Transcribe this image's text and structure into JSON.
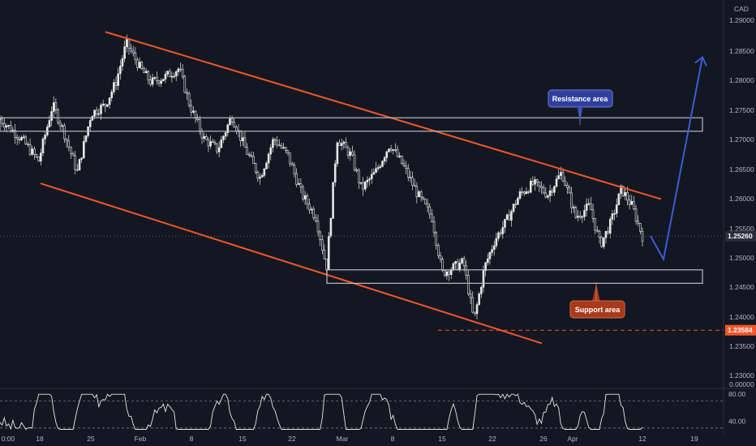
{
  "currency": "CAD",
  "colors": {
    "background": "#131722",
    "candle": "#e6e6e6",
    "trendline": "#f2562a",
    "zone_border": "#b8bcc6",
    "resistance_tag": "#2f3f9e",
    "support_tag": "#a8391a",
    "forecast_arrow": "#3d5bd6",
    "price_tag": "#f2562a",
    "last_price_tag": "#2a2e39",
    "oscillator_line": "#e6e6e6"
  },
  "annotations": {
    "resistance_label": "Resistance area",
    "support_label": "Support area"
  },
  "chart_data": {
    "type": "candlestick",
    "y_axis_labels": [
      "1.29000",
      "1.28500",
      "1.28000",
      "1.27500",
      "1.27000",
      "1.26500",
      "1.26000",
      "1.25500",
      "1.25000",
      "1.24500",
      "1.24000",
      "1.23500",
      "1.23000",
      "0.00000"
    ],
    "ylim": [
      1.2285,
      1.2918
    ],
    "x_axis_labels": [
      "0:00",
      "18",
      "25",
      "Feb",
      "8",
      "15",
      "22",
      "Mar",
      "8",
      "15",
      "22",
      "26",
      "Apr",
      "12",
      "19"
    ],
    "last_price": "1.25260",
    "marked_low": "1.23584",
    "resistance_zone": [
      1.2713,
      1.2737
    ],
    "support_zone": [
      1.2442,
      1.2466
    ],
    "channel_upper": [
      [
        0.0,
        1.289
      ],
      [
        1.0,
        1.2592
      ]
    ],
    "channel_lower": [
      [
        0.0,
        1.262
      ],
      [
        1.0,
        1.2335
      ]
    ],
    "close_path": [
      [
        0.0,
        1.2735
      ],
      [
        0.03,
        1.27
      ],
      [
        0.055,
        1.266
      ],
      [
        0.075,
        1.276
      ],
      [
        0.09,
        1.2715
      ],
      [
        0.11,
        1.264
      ],
      [
        0.13,
        1.2745
      ],
      [
        0.15,
        1.276
      ],
      [
        0.165,
        1.28
      ],
      [
        0.18,
        1.287
      ],
      [
        0.2,
        1.2825
      ],
      [
        0.215,
        1.28
      ],
      [
        0.235,
        1.281
      ],
      [
        0.255,
        1.2825
      ],
      [
        0.27,
        1.276
      ],
      [
        0.29,
        1.27
      ],
      [
        0.31,
        1.268
      ],
      [
        0.33,
        1.274
      ],
      [
        0.35,
        1.268
      ],
      [
        0.37,
        1.263
      ],
      [
        0.39,
        1.27
      ],
      [
        0.41,
        1.267
      ],
      [
        0.43,
        1.26
      ],
      [
        0.45,
        1.256
      ],
      [
        0.465,
        1.247
      ],
      [
        0.48,
        1.27
      ],
      [
        0.5,
        1.267
      ],
      [
        0.515,
        1.261
      ],
      [
        0.535,
        1.264
      ],
      [
        0.555,
        1.269
      ],
      [
        0.575,
        1.265
      ],
      [
        0.595,
        1.26
      ],
      [
        0.615,
        1.256
      ],
      [
        0.63,
        1.246
      ],
      [
        0.645,
        1.247
      ],
      [
        0.66,
        1.248
      ],
      [
        0.675,
        1.2375
      ],
      [
        0.69,
        1.247
      ],
      [
        0.705,
        1.252
      ],
      [
        0.72,
        1.255
      ],
      [
        0.74,
        1.26
      ],
      [
        0.76,
        1.262
      ],
      [
        0.78,
        1.26
      ],
      [
        0.8,
        1.264
      ],
      [
        0.82,
        1.256
      ],
      [
        0.84,
        1.258
      ],
      [
        0.855,
        1.251
      ],
      [
        0.87,
        1.255
      ],
      [
        0.885,
        1.261
      ],
      [
        0.9,
        1.258
      ],
      [
        0.915,
        1.2526
      ]
    ],
    "forecast_path": [
      [
        1.2526,
        0
      ],
      [
        1.2485,
        1
      ],
      [
        1.2845,
        2
      ]
    ],
    "oscillator": {
      "labels": [
        "80.00",
        "40.00"
      ],
      "levels": [
        70,
        30
      ],
      "range": [
        25,
        85
      ]
    }
  }
}
